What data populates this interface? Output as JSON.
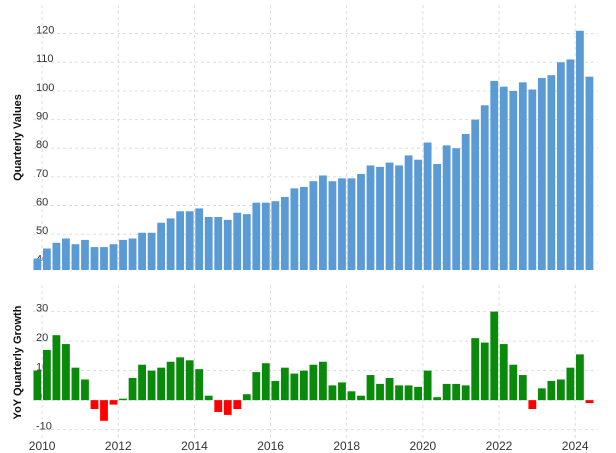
{
  "chart_data": [
    {
      "type": "bar",
      "ylabel": "Quarterly Values",
      "color": "#5b9bd5",
      "grid": true,
      "x": [
        2009.875,
        2010.125,
        2010.375,
        2010.625,
        2010.875,
        2011.125,
        2011.375,
        2011.625,
        2011.875,
        2012.125,
        2012.375,
        2012.625,
        2012.875,
        2013.125,
        2013.375,
        2013.625,
        2013.875,
        2014.125,
        2014.375,
        2014.625,
        2014.875,
        2015.125,
        2015.375,
        2015.625,
        2015.875,
        2016.125,
        2016.375,
        2016.625,
        2016.875,
        2017.125,
        2017.375,
        2017.625,
        2017.875,
        2018.125,
        2018.375,
        2018.625,
        2018.875,
        2019.125,
        2019.375,
        2019.625,
        2019.875,
        2020.125,
        2020.375,
        2020.625,
        2020.875,
        2021.125,
        2021.375,
        2021.625,
        2021.875,
        2022.125,
        2022.375,
        2022.625,
        2022.875,
        2023.125,
        2023.375,
        2023.625,
        2023.875,
        2024.125,
        2024.375
      ],
      "values": [
        41.5,
        45,
        47,
        48.5,
        46.5,
        48,
        45.5,
        45.5,
        46.5,
        48,
        48.5,
        50.5,
        50.5,
        54,
        55.5,
        58,
        58,
        59,
        56,
        56,
        55,
        57.5,
        57,
        61,
        61,
        61.5,
        63,
        66,
        66.5,
        68.5,
        70.5,
        68.5,
        69.5,
        69.5,
        71,
        74,
        73.5,
        75,
        74,
        77.5,
        76,
        82,
        74.5,
        81,
        80,
        85,
        90,
        95,
        103.5,
        101.5,
        100,
        103,
        100.5,
        104.5,
        105.5,
        110,
        111,
        121,
        105
      ],
      "xlim": [
        2009.76,
        2024.6
      ],
      "xticks": [
        2010,
        2012,
        2014,
        2016,
        2018,
        2020,
        2022,
        2024
      ],
      "ylim": [
        37.5,
        130
      ],
      "yticks": [
        40,
        50,
        60,
        70,
        80,
        90,
        100,
        110,
        120
      ]
    },
    {
      "type": "bar",
      "ylabel": "YoY Quarterly Growth",
      "color": "#0a8a0a",
      "negative_color": "#ff0000",
      "grid": true,
      "x": [
        2009.875,
        2010.125,
        2010.375,
        2010.625,
        2010.875,
        2011.125,
        2011.375,
        2011.625,
        2011.875,
        2012.125,
        2012.375,
        2012.625,
        2012.875,
        2013.125,
        2013.375,
        2013.625,
        2013.875,
        2014.125,
        2014.375,
        2014.625,
        2014.875,
        2015.125,
        2015.375,
        2015.625,
        2015.875,
        2016.125,
        2016.375,
        2016.625,
        2016.875,
        2017.125,
        2017.375,
        2017.625,
        2017.875,
        2018.125,
        2018.375,
        2018.625,
        2018.875,
        2019.125,
        2019.375,
        2019.625,
        2019.875,
        2020.125,
        2020.375,
        2020.625,
        2020.875,
        2021.125,
        2021.375,
        2021.625,
        2021.875,
        2022.125,
        2022.375,
        2022.625,
        2022.875,
        2023.125,
        2023.375,
        2023.625,
        2023.875,
        2024.125,
        2024.375
      ],
      "values": [
        10,
        17,
        22,
        19,
        11,
        7,
        -3,
        -7,
        -1.5,
        0.5,
        7.5,
        12,
        10,
        11,
        13,
        14.5,
        13.5,
        10.5,
        1.5,
        -4,
        -5,
        -3,
        2,
        9.5,
        12.5,
        6.5,
        11,
        9,
        10,
        12,
        13,
        5,
        6,
        3,
        1.5,
        8.5,
        5.5,
        7.5,
        5,
        5,
        4.5,
        10,
        1,
        5.5,
        5.5,
        5,
        21,
        19.5,
        30,
        19,
        12,
        8.5,
        -3,
        4,
        6.5,
        7,
        11,
        15.5,
        -1
      ],
      "xlim": [
        2009.76,
        2024.6
      ],
      "xticks": [
        2010,
        2012,
        2014,
        2016,
        2018,
        2020,
        2022,
        2024
      ],
      "ylim": [
        -13.5,
        39
      ],
      "yticks": [
        -10,
        0,
        10,
        20,
        30
      ]
    }
  ]
}
